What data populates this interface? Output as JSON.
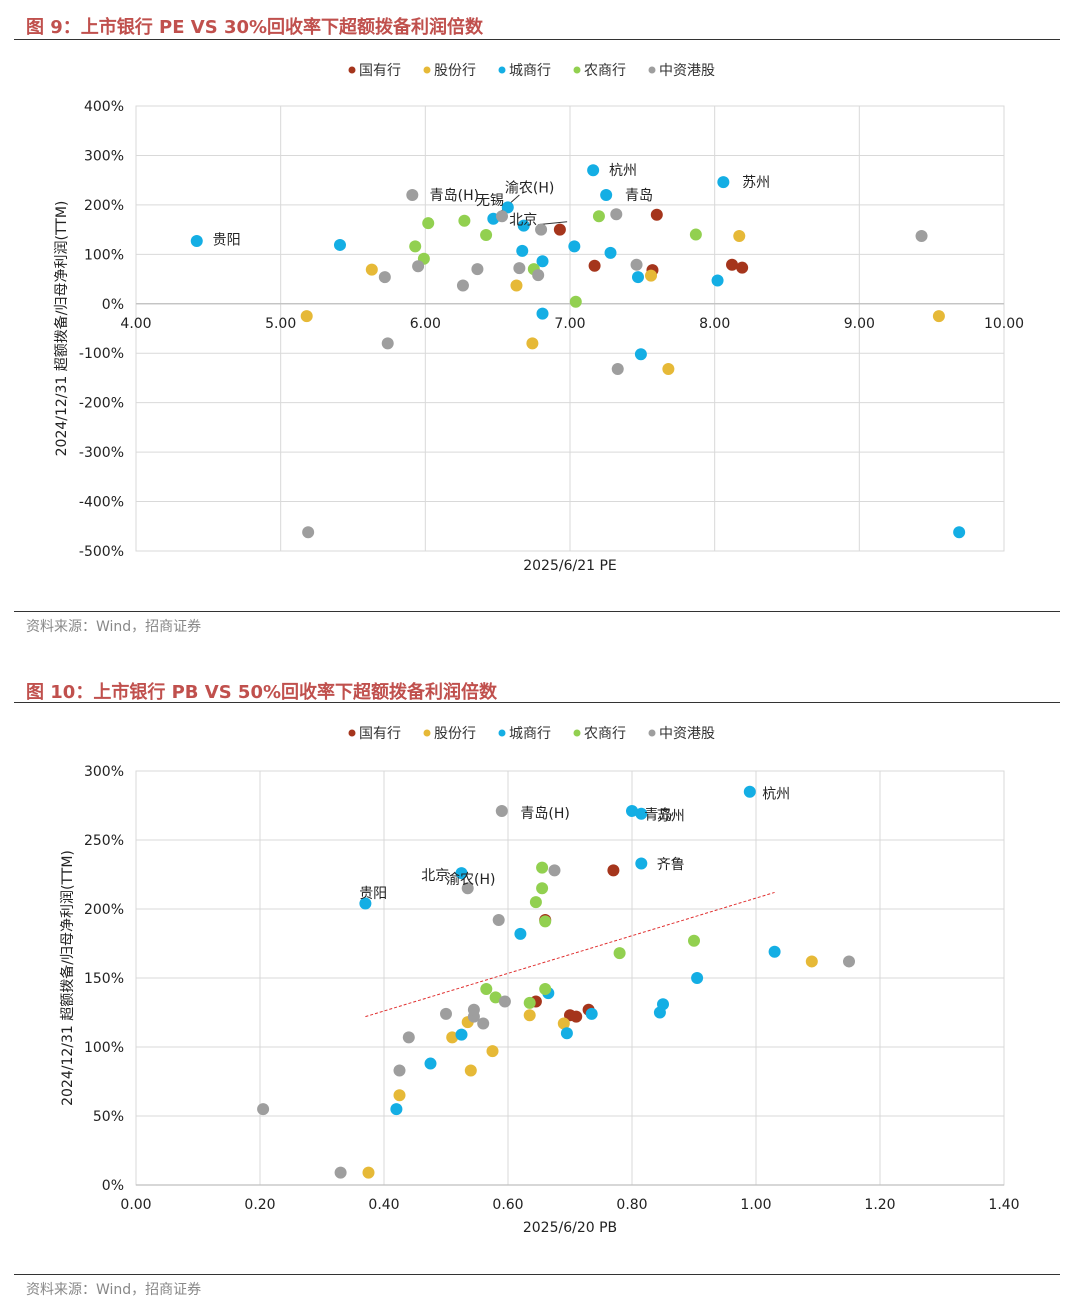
{
  "figure1": {
    "title": "图 9：上市银行 PE VS 30%回收率下超额拨备利润倍数",
    "source": "资料来源：Wind，招商证券",
    "chart_data": {
      "type": "scatter",
      "title": "上市银行 PE VS 30%回收率下超额拨备利润倍数",
      "xlabel": "2025/6/21 PE",
      "ylabel": "2024/12/31 超额拨备/归母净利润(TTM)",
      "xlim": [
        4.0,
        10.0
      ],
      "ylim": [
        -5.0,
        4.0
      ],
      "x_ticks": [
        "4.00",
        "5.00",
        "6.00",
        "7.00",
        "8.00",
        "9.00",
        "10.00"
      ],
      "y_ticks": [
        "400%",
        "300%",
        "200%",
        "100%",
        "0%",
        "-100%",
        "-200%",
        "-300%",
        "-400%",
        "-500%"
      ],
      "legend": [
        "国有行",
        "股份行",
        "城商行",
        "农商行",
        "中资港股"
      ],
      "series": [
        {
          "name": "国有行",
          "color": "#a5351c",
          "points": [
            [
              6.93,
              1.5
            ],
            [
              7.17,
              0.77
            ],
            [
              7.6,
              1.8
            ],
            [
              7.57,
              0.68
            ],
            [
              8.12,
              0.79
            ],
            [
              8.19,
              0.73
            ]
          ]
        },
        {
          "name": "股份行",
          "color": "#e6b937",
          "points": [
            [
              5.18,
              -0.25
            ],
            [
              5.63,
              0.69
            ],
            [
              6.63,
              0.37
            ],
            [
              6.74,
              -0.8
            ],
            [
              7.56,
              0.57
            ],
            [
              7.68,
              -1.32
            ],
            [
              8.17,
              1.37
            ],
            [
              9.55,
              -0.25
            ]
          ]
        },
        {
          "name": "城商行",
          "color": "#14aee4",
          "points": [
            [
              4.42,
              1.27
            ],
            [
              5.41,
              1.19
            ],
            [
              6.47,
              1.72
            ],
            [
              6.57,
              1.95
            ],
            [
              6.67,
              1.07
            ],
            [
              6.68,
              1.58
            ],
            [
              6.81,
              0.86
            ],
            [
              6.81,
              -0.2
            ],
            [
              7.03,
              1.16
            ],
            [
              7.16,
              2.7
            ],
            [
              7.25,
              2.2
            ],
            [
              7.28,
              1.03
            ],
            [
              7.47,
              0.54
            ],
            [
              7.49,
              -1.02
            ],
            [
              8.02,
              0.47
            ],
            [
              8.06,
              2.46
            ],
            [
              9.69,
              -4.62
            ]
          ]
        },
        {
          "name": "农商行",
          "color": "#92d050",
          "points": [
            [
              5.93,
              1.16
            ],
            [
              5.99,
              0.91
            ],
            [
              6.02,
              1.63
            ],
            [
              6.27,
              1.68
            ],
            [
              6.42,
              1.39
            ],
            [
              6.75,
              0.7
            ],
            [
              7.04,
              0.04
            ],
            [
              7.2,
              1.77
            ],
            [
              7.87,
              1.4
            ]
          ]
        },
        {
          "name": "中资港股",
          "color": "#9e9e9e",
          "points": [
            [
              5.19,
              -4.62
            ],
            [
              5.72,
              0.54
            ],
            [
              5.74,
              -0.8
            ],
            [
              5.91,
              2.2
            ],
            [
              5.95,
              0.76
            ],
            [
              6.26,
              0.37
            ],
            [
              6.36,
              0.7
            ],
            [
              6.53,
              1.77
            ],
            [
              6.65,
              0.72
            ],
            [
              6.78,
              0.58
            ],
            [
              6.8,
              1.5
            ],
            [
              7.32,
              1.81
            ],
            [
              7.46,
              0.79
            ],
            [
              7.33,
              -1.32
            ],
            [
              9.43,
              1.37
            ]
          ]
        }
      ],
      "labels": [
        "贵阳",
        "青岛(H)",
        "无锡",
        "渝农(H)",
        "北京",
        "杭州",
        "青岛",
        "苏州"
      ]
    }
  },
  "figure2": {
    "title": "图 10：上市银行 PB VS 50%回收率下超额拨备利润倍数",
    "source": "资料来源：Wind，招商证券",
    "chart_data": {
      "type": "scatter",
      "title": "上市银行 PB VS 50%回收率下超额拨备利润倍数",
      "xlabel": "2025/6/20 PB",
      "ylabel": "2024/12/31 超额拨备/归母净利润(TTM)",
      "xlim": [
        0.0,
        1.4
      ],
      "ylim": [
        0.0,
        3.0
      ],
      "x_ticks": [
        "0.00",
        "0.20",
        "0.40",
        "0.60",
        "0.80",
        "1.00",
        "1.20",
        "1.40"
      ],
      "y_ticks": [
        "300%",
        "250%",
        "200%",
        "150%",
        "100%",
        "50%",
        "0%"
      ],
      "legend": [
        "国有行",
        "股份行",
        "城商行",
        "农商行",
        "中资港股"
      ],
      "trendline": {
        "x": [
          0.37,
          1.03
        ],
        "y": [
          1.22,
          2.12
        ]
      },
      "series": [
        {
          "name": "国有行",
          "color": "#a5351c",
          "points": [
            [
              0.645,
              1.33
            ],
            [
              0.66,
              1.92
            ],
            [
              0.7,
              1.23
            ],
            [
              0.71,
              1.22
            ],
            [
              0.73,
              1.27
            ],
            [
              0.77,
              2.28
            ]
          ]
        },
        {
          "name": "股份行",
          "color": "#e6b937",
          "points": [
            [
              0.375,
              0.09
            ],
            [
              0.425,
              0.65
            ],
            [
              0.51,
              1.07
            ],
            [
              0.535,
              1.18
            ],
            [
              0.54,
              0.83
            ],
            [
              0.575,
              0.97
            ],
            [
              0.635,
              1.23
            ],
            [
              0.69,
              1.17
            ],
            [
              1.09,
              1.62
            ]
          ]
        },
        {
          "name": "城商行",
          "color": "#14aee4",
          "points": [
            [
              0.37,
              2.04
            ],
            [
              0.42,
              0.55
            ],
            [
              0.475,
              0.88
            ],
            [
              0.525,
              1.09
            ],
            [
              0.525,
              2.26
            ],
            [
              0.62,
              1.82
            ],
            [
              0.665,
              1.39
            ],
            [
              0.695,
              1.1
            ],
            [
              0.735,
              1.24
            ],
            [
              0.8,
              2.71
            ],
            [
              0.815,
              2.69
            ],
            [
              0.815,
              2.33
            ],
            [
              0.845,
              1.25
            ],
            [
              0.85,
              1.31
            ],
            [
              0.905,
              1.5
            ],
            [
              0.99,
              2.85
            ],
            [
              1.03,
              1.69
            ]
          ]
        },
        {
          "name": "农商行",
          "color": "#92d050",
          "points": [
            [
              0.565,
              1.42
            ],
            [
              0.58,
              1.36
            ],
            [
              0.635,
              1.32
            ],
            [
              0.645,
              2.05
            ],
            [
              0.655,
              2.15
            ],
            [
              0.655,
              2.3
            ],
            [
              0.66,
              1.42
            ],
            [
              0.66,
              1.91
            ],
            [
              0.78,
              1.68
            ],
            [
              0.9,
              1.77
            ]
          ]
        },
        {
          "name": "中资港股",
          "color": "#9e9e9e",
          "points": [
            [
              0.205,
              0.55
            ],
            [
              0.33,
              0.09
            ],
            [
              0.425,
              0.83
            ],
            [
              0.44,
              1.07
            ],
            [
              0.5,
              1.24
            ],
            [
              0.535,
              2.15
            ],
            [
              0.545,
              1.22
            ],
            [
              0.545,
              1.27
            ],
            [
              0.56,
              1.17
            ],
            [
              0.585,
              1.92
            ],
            [
              0.59,
              2.71
            ],
            [
              0.595,
              1.33
            ],
            [
              0.675,
              2.28
            ],
            [
              1.15,
              1.62
            ]
          ]
        }
      ],
      "labels": [
        "青岛(H)",
        "青岛",
        "苏州",
        "杭州",
        "北京",
        "渝农(H)",
        "贵阳",
        "齐鲁"
      ]
    }
  }
}
